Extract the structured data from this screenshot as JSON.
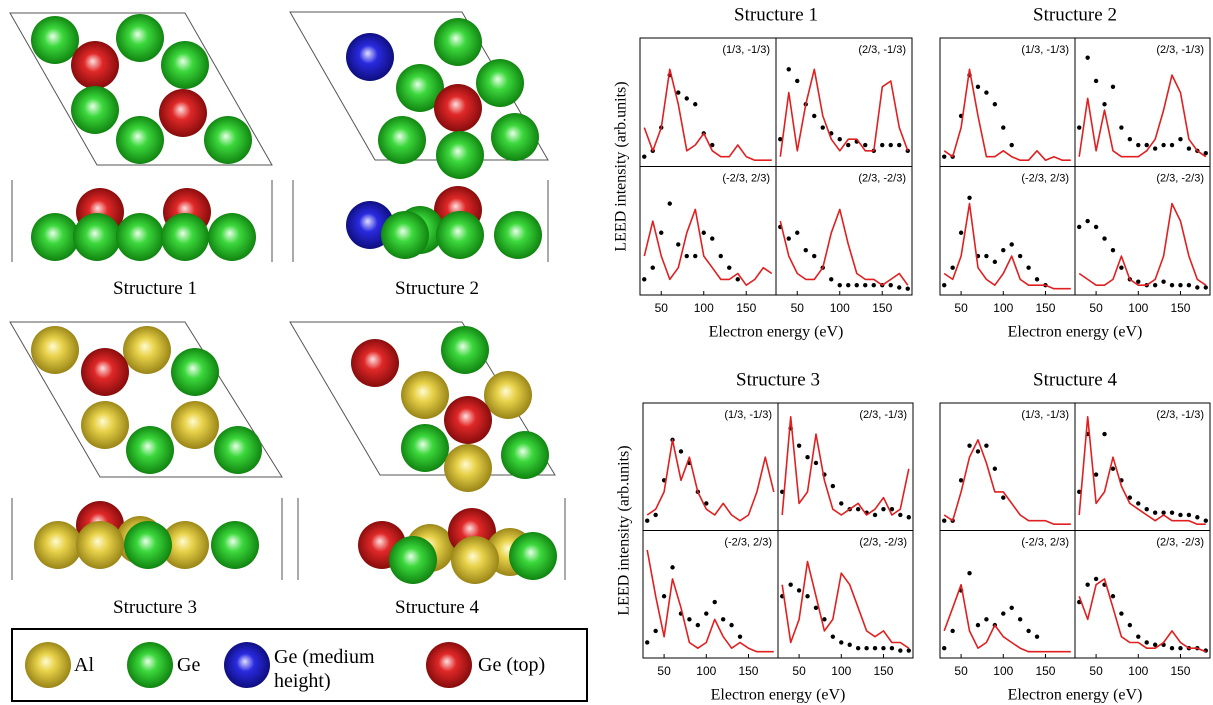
{
  "figure": {
    "structure_labels": [
      "Structure 1",
      "Structure 2",
      "Structure 3",
      "Structure 4"
    ],
    "legend": [
      "Al",
      "Ge",
      "Ge (medium height)",
      "Ge (top)"
    ]
  },
  "chart_data": [
    {
      "type": "line",
      "title": "Structure 1",
      "y_label": "LEED intensity (arb.units)",
      "x_label": "Electron energy (eV)",
      "x": [
        30,
        40,
        50,
        60,
        70,
        80,
        90,
        100,
        110,
        120,
        130,
        140,
        150,
        160,
        170,
        180
      ],
      "xlim": [
        25,
        185
      ],
      "xticks": [
        50,
        100,
        150
      ],
      "ylim": [
        0,
        1
      ],
      "panels": [
        {
          "label": "(1/3, -1/3)",
          "series": [
            {
              "type": "scatter",
              "color": "#000000",
              "values": [
                0.05,
                0.1,
                0.3,
                0.75,
                0.6,
                0.55,
                0.5,
                0.25,
                0.15,
                null,
                null,
                null,
                null,
                null,
                null,
                null
              ]
            },
            {
              "type": "line",
              "color": "#e02020",
              "values": [
                0.3,
                0.1,
                0.3,
                0.8,
                0.5,
                0.1,
                0.15,
                0.25,
                0.1,
                0.05,
                0.05,
                0.15,
                0.05,
                0.02,
                0.02,
                0.02
              ]
            }
          ]
        },
        {
          "label": "(2/3, -1/3)",
          "series": [
            {
              "type": "scatter",
              "color": "#000000",
              "values": [
                0.2,
                0.8,
                0.7,
                0.5,
                0.4,
                0.3,
                0.25,
                0.2,
                0.15,
                0.18,
                0.15,
                0.1,
                0.15,
                0.15,
                0.15,
                0.1
              ]
            },
            {
              "type": "line",
              "color": "#e02020",
              "values": [
                0.05,
                0.6,
                0.1,
                0.5,
                0.8,
                0.4,
                0.2,
                0.1,
                0.2,
                0.2,
                0.1,
                0.1,
                0.65,
                0.7,
                0.3,
                0.1
              ]
            }
          ]
        },
        {
          "label": "(-2/3, 2/3)",
          "series": [
            {
              "type": "scatter",
              "color": "#000000",
              "values": [
                0.1,
                0.2,
                0.5,
                0.75,
                0.4,
                0.3,
                0.3,
                0.5,
                0.45,
                0.3,
                0.2,
                0.1,
                null,
                null,
                null,
                null
              ]
            },
            {
              "type": "line",
              "color": "#e02020",
              "values": [
                0.3,
                0.6,
                0.3,
                0.1,
                0.2,
                0.5,
                0.7,
                0.3,
                0.2,
                0.1,
                0.1,
                0.15,
                0.05,
                0.1,
                0.2,
                0.15
              ]
            }
          ]
        },
        {
          "label": "(2/3, -2/3)",
          "series": [
            {
              "type": "scatter",
              "color": "#000000",
              "values": [
                0.55,
                0.45,
                0.5,
                0.35,
                0.3,
                0.2,
                0.1,
                0.05,
                0.05,
                0.05,
                0.05,
                0.05,
                0.05,
                0.05,
                0.03,
                0.02
              ]
            },
            {
              "type": "line",
              "color": "#e02020",
              "values": [
                0.6,
                0.3,
                0.15,
                0.1,
                0.1,
                0.2,
                0.5,
                0.7,
                0.4,
                0.15,
                0.1,
                0.1,
                0.05,
                0.1,
                0.15,
                0.05
              ]
            }
          ]
        }
      ]
    },
    {
      "type": "line",
      "title": "Structure 2",
      "x_label": "Electron energy (eV)",
      "x": [
        30,
        40,
        50,
        60,
        70,
        80,
        90,
        100,
        110,
        120,
        130,
        140,
        150,
        160,
        170,
        180
      ],
      "xlim": [
        25,
        185
      ],
      "xticks": [
        50,
        100,
        150
      ],
      "ylim": [
        0,
        1
      ],
      "panels": [
        {
          "label": "(1/3, -1/3)",
          "series": [
            {
              "type": "scatter",
              "color": "#000000",
              "values": [
                0.05,
                0.05,
                0.4,
                0.75,
                0.65,
                0.6,
                0.5,
                0.3,
                0.15,
                null,
                null,
                null,
                null,
                null,
                null,
                null
              ]
            },
            {
              "type": "line",
              "color": "#e02020",
              "values": [
                0.1,
                0.05,
                0.3,
                0.8,
                0.4,
                0.05,
                0.05,
                0.1,
                0.05,
                0.02,
                0.02,
                0.1,
                0.02,
                0.05,
                0.02,
                0.02
              ]
            }
          ]
        },
        {
          "label": "(2/3, -1/3)",
          "series": [
            {
              "type": "scatter",
              "color": "#000000",
              "values": [
                0.3,
                0.9,
                0.7,
                0.5,
                0.65,
                0.3,
                0.2,
                0.15,
                0.15,
                0.12,
                0.15,
                0.15,
                0.2,
                0.12,
                0.1,
                0.08
              ]
            },
            {
              "type": "line",
              "color": "#e02020",
              "values": [
                0.05,
                0.55,
                0.1,
                0.45,
                0.1,
                0.05,
                0.05,
                0.05,
                0.1,
                0.2,
                0.45,
                0.75,
                0.6,
                0.2,
                0.1,
                0.05
              ]
            }
          ]
        },
        {
          "label": "(-2/3, 2/3)",
          "series": [
            {
              "type": "scatter",
              "color": "#000000",
              "values": [
                0.05,
                0.2,
                0.5,
                0.8,
                0.3,
                0.3,
                0.25,
                0.35,
                0.4,
                0.3,
                0.2,
                0.1,
                0.05,
                null,
                null,
                null
              ]
            },
            {
              "type": "line",
              "color": "#e02020",
              "values": [
                0.15,
                0.1,
                0.3,
                0.75,
                0.2,
                0.1,
                0.05,
                0.15,
                0.3,
                0.1,
                0.05,
                0.05,
                0.05,
                0.02,
                0.02,
                0.02
              ]
            }
          ]
        },
        {
          "label": "(2/3, -2/3)",
          "series": [
            {
              "type": "scatter",
              "color": "#000000",
              "values": [
                0.55,
                0.6,
                0.55,
                0.45,
                0.35,
                0.2,
                0.1,
                0.08,
                0.05,
                0.05,
                0.08,
                0.05,
                0.05,
                0.05,
                0.03,
                0.03
              ]
            },
            {
              "type": "line",
              "color": "#e02020",
              "values": [
                0.15,
                0.1,
                0.05,
                0.05,
                0.1,
                0.3,
                0.1,
                0.05,
                0.05,
                0.1,
                0.3,
                0.75,
                0.6,
                0.3,
                0.1,
                0.05
              ]
            }
          ]
        }
      ]
    },
    {
      "type": "line",
      "title": "Structure 3",
      "y_label": "LEED intensity (arb.units)",
      "x_label": "Electron energy (eV)",
      "x": [
        30,
        40,
        50,
        60,
        70,
        80,
        90,
        100,
        110,
        120,
        130,
        140,
        150,
        160,
        170,
        180
      ],
      "xlim": [
        25,
        185
      ],
      "xticks": [
        50,
        100,
        150
      ],
      "ylim": [
        0,
        1
      ],
      "panels": [
        {
          "label": "(1/3, -1/3)",
          "series": [
            {
              "type": "scatter",
              "color": "#000000",
              "values": [
                0.05,
                0.1,
                0.4,
                0.75,
                0.65,
                0.55,
                0.3,
                0.2,
                null,
                null,
                null,
                null,
                null,
                null,
                null,
                null
              ]
            },
            {
              "type": "line",
              "color": "#e02020",
              "values": [
                0.1,
                0.15,
                0.3,
                0.75,
                0.4,
                0.6,
                0.3,
                0.15,
                0.1,
                0.2,
                0.1,
                0.05,
                0.1,
                0.3,
                0.6,
                0.3
              ]
            }
          ]
        },
        {
          "label": "(2/3, -1/3)",
          "series": [
            {
              "type": "scatter",
              "color": "#000000",
              "values": [
                0.3,
                0.85,
                0.7,
                0.6,
                0.55,
                0.45,
                0.35,
                0.2,
                0.15,
                0.15,
                0.12,
                0.1,
                0.15,
                0.15,
                0.1,
                0.08
              ]
            },
            {
              "type": "line",
              "color": "#e02020",
              "values": [
                0.1,
                0.95,
                0.2,
                0.3,
                0.8,
                0.4,
                0.15,
                0.1,
                0.15,
                0.2,
                0.1,
                0.15,
                0.25,
                0.1,
                0.15,
                0.5
              ]
            }
          ]
        },
        {
          "label": "(-2/3, 2/3)",
          "series": [
            {
              "type": "scatter",
              "color": "#000000",
              "values": [
                0.1,
                0.2,
                0.5,
                0.75,
                0.35,
                0.3,
                0.25,
                0.35,
                0.45,
                0.3,
                0.25,
                0.15,
                null,
                null,
                null,
                null
              ]
            },
            {
              "type": "line",
              "color": "#e02020",
              "values": [
                0.9,
                0.5,
                0.15,
                0.65,
                0.4,
                0.1,
                0.05,
                0.1,
                0.3,
                0.15,
                0.05,
                0.1,
                0.05,
                0.02,
                0.02,
                0.02
              ]
            }
          ]
        },
        {
          "label": "(2/3, -2/3)",
          "series": [
            {
              "type": "scatter",
              "color": "#000000",
              "values": [
                0.5,
                0.6,
                0.55,
                0.5,
                0.4,
                0.3,
                0.15,
                0.1,
                0.08,
                0.05,
                0.05,
                0.05,
                0.05,
                0.05,
                0.03,
                0.03
              ]
            },
            {
              "type": "line",
              "color": "#e02020",
              "values": [
                0.6,
                0.1,
                0.3,
                0.8,
                0.5,
                0.2,
                0.3,
                0.7,
                0.6,
                0.4,
                0.2,
                0.15,
                0.2,
                0.1,
                0.1,
                0.05
              ]
            }
          ]
        }
      ]
    },
    {
      "type": "line",
      "title": "Structure 4",
      "x_label": "Electron energy (eV)",
      "x": [
        30,
        40,
        50,
        60,
        70,
        80,
        90,
        100,
        110,
        120,
        130,
        140,
        150,
        160,
        170,
        180
      ],
      "xlim": [
        25,
        185
      ],
      "xticks": [
        50,
        100,
        150
      ],
      "ylim": [
        0,
        1
      ],
      "panels": [
        {
          "label": "(1/3, -1/3)",
          "series": [
            {
              "type": "scatter",
              "color": "#000000",
              "values": [
                0.05,
                0.05,
                0.4,
                0.7,
                0.65,
                0.7,
                0.5,
                0.25,
                null,
                null,
                null,
                null,
                null,
                null,
                null,
                null
              ]
            },
            {
              "type": "line",
              "color": "#e02020",
              "values": [
                0.1,
                0.05,
                0.3,
                0.6,
                0.75,
                0.55,
                0.3,
                0.3,
                0.2,
                0.1,
                0.05,
                0.05,
                0.05,
                0.02,
                0.02,
                0.02
              ]
            }
          ]
        },
        {
          "label": "(2/3, -1/3)",
          "series": [
            {
              "type": "scatter",
              "color": "#000000",
              "values": [
                0.3,
                0.8,
                0.45,
                0.8,
                0.5,
                0.4,
                0.25,
                0.2,
                0.15,
                0.12,
                0.12,
                0.12,
                0.1,
                0.1,
                0.08,
                0.05
              ]
            },
            {
              "type": "line",
              "color": "#e02020",
              "values": [
                0.1,
                0.95,
                0.2,
                0.3,
                0.6,
                0.35,
                0.2,
                0.15,
                0.1,
                0.05,
                0.1,
                0.05,
                0.05,
                0.05,
                0.02,
                0.02
              ]
            }
          ]
        },
        {
          "label": "(-2/3, 2/3)",
          "series": [
            {
              "type": "scatter",
              "color": "#000000",
              "values": [
                0.05,
                0.2,
                0.55,
                0.7,
                0.25,
                0.3,
                0.25,
                0.35,
                0.4,
                0.3,
                0.2,
                0.15,
                null,
                null,
                null,
                null
              ]
            },
            {
              "type": "line",
              "color": "#e02020",
              "values": [
                0.2,
                0.4,
                0.6,
                0.2,
                0.05,
                0.1,
                0.25,
                0.15,
                0.1,
                0.05,
                0.02,
                0.02,
                0.02,
                0.02,
                0.02,
                0.02
              ]
            }
          ]
        },
        {
          "label": "(2/3, -2/3)",
          "series": [
            {
              "type": "scatter",
              "color": "#000000",
              "values": [
                0.45,
                0.6,
                0.65,
                0.6,
                0.5,
                0.35,
                0.25,
                0.15,
                0.1,
                0.08,
                0.08,
                0.05,
                0.05,
                0.05,
                0.05,
                0.03
              ]
            },
            {
              "type": "line",
              "color": "#e02020",
              "values": [
                0.5,
                0.3,
                0.6,
                0.65,
                0.4,
                0.15,
                0.1,
                0.1,
                0.05,
                0.05,
                0.1,
                0.2,
                0.1,
                0.05,
                0.05,
                0.02
              ]
            }
          ]
        }
      ]
    }
  ]
}
